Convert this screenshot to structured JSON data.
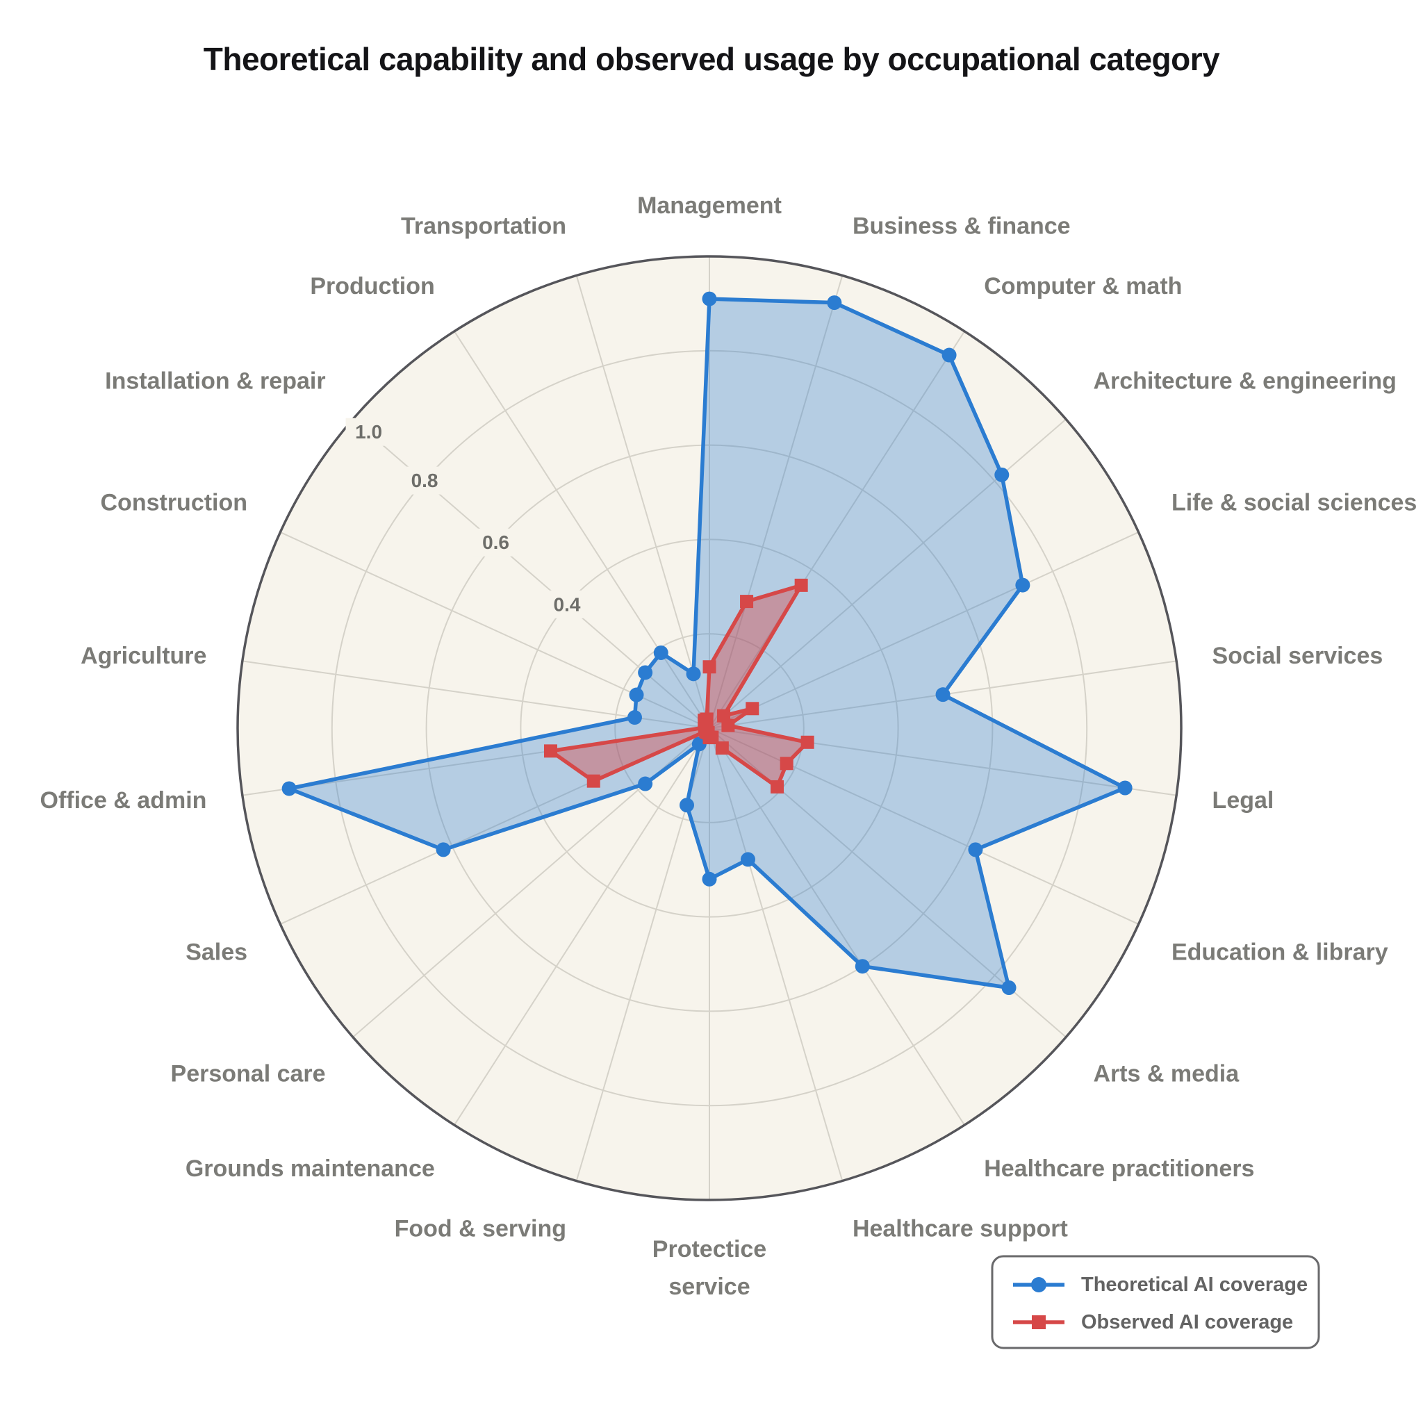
{
  "chart_data": {
    "type": "radar",
    "title": "Theoretical capability and observed usage by occupational category",
    "rmax": 1.0,
    "grid_step": 0.2,
    "grid": true,
    "start_angle_deg": 90,
    "direction": "clockwise",
    "radial_ticks": [
      {
        "value": 0.4,
        "label": "0.4"
      },
      {
        "value": 0.6,
        "label": "0.6"
      },
      {
        "value": 0.8,
        "label": "0.8"
      },
      {
        "value": 1.0,
        "label": "1.0"
      }
    ],
    "tick_label_angle_deg": 139,
    "categories": [
      "Management",
      "Business & finance",
      "Computer & math",
      "Architecture & engineering",
      "Life & social sciences",
      "Social services",
      "Legal",
      "Education & library",
      "Arts & media",
      "Healthcare practitioners",
      "Healthcare support",
      "Protectice\nservice",
      "Food & serving",
      "Grounds maintenance",
      "Personal care",
      "Sales",
      "Office & admin",
      "Agriculture",
      "Construction",
      "Installation & repair",
      "Production",
      "Transportation"
    ],
    "series": [
      {
        "name": "Theoretical AI coverage",
        "marker": "circle",
        "color": "#2b7cd1",
        "fill_opacity": 0.32,
        "values": [
          0.91,
          0.94,
          0.94,
          0.82,
          0.73,
          0.5,
          0.89,
          0.62,
          0.84,
          0.6,
          0.29,
          0.32,
          0.17,
          0.04,
          0.18,
          0.62,
          0.9,
          0.16,
          0.17,
          0.18,
          0.19,
          0.12
        ]
      },
      {
        "name": "Observed AI coverage",
        "marker": "square",
        "color": "#d64848",
        "fill_opacity": 0.42,
        "values": [
          0.13,
          0.28,
          0.36,
          0.04,
          0.1,
          0.04,
          0.21,
          0.18,
          0.19,
          0.05,
          0.02,
          0.02,
          0.01,
          0.01,
          0.01,
          0.27,
          0.34,
          0.01,
          0.01,
          0.01,
          0.02,
          0.02
        ]
      }
    ],
    "legend_position": "bottom-right"
  },
  "style": {
    "page_bg": "#ffffff",
    "plot_bg": "#f7f4ec",
    "grid_color": "#d5d2c9",
    "outer_ring_color": "#55555a",
    "category_label_color": "#7b7b77",
    "tick_label_color": "#6e6e6a",
    "title_color": "#141417",
    "legend_text_color": "#636363",
    "legend_border_color": "#69696b",
    "legend_bg": "#ffffff"
  }
}
